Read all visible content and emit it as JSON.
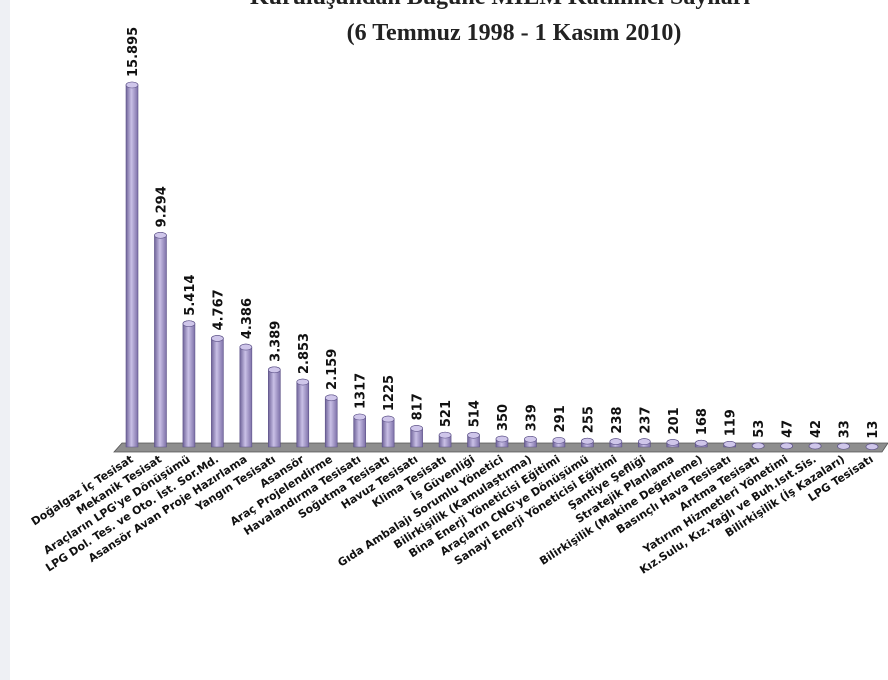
{
  "chart_data": {
    "type": "bar",
    "title": "Kuruluşundan Bugüne MİEM Katılımcı Sayıları",
    "subtitle": "(6 Temmuz 1998 - 1 Kasım 2010)",
    "color": "#9d90c6",
    "categories": [
      "Doğalgaz İç Tesisat",
      "Mekanik Tesisat",
      "Araçların LPG'ye Dönüşümü",
      "LPG Dol. Tes. ve Oto. İst. Sor.Md.",
      "Asansör Avan Proje Hazırlama",
      "Yangın Tesisatı",
      "Asansör",
      "Araç Projelendirme",
      "Havalandırma Tesisatı",
      "Soğutma Tesisatı",
      "Havuz Tesisatı",
      "Klima Tesisatı",
      "İş Güvenliği",
      "Gıda Ambalajı Sorumlu Yönetici",
      "Bilirkişilik (Kamulaştırma)",
      "Bina Enerji Yöneticisi Eğitimi",
      "Araçların CNG'ye Dönüşümü",
      "Sanayi Enerji Yöneticisi Eğitimi",
      "Şantiye Şefliği",
      "Stratejik Planlama",
      "Bilirkişilik (Makine Değerleme)",
      "Basınçlı Hava Tesisatı",
      "Arıtma Tesisatı",
      "Yatırım Hizmetleri Yönetimi",
      "Kız.Sulu, Kız.Yağlı ve Buh.Isıt.Sis.",
      "Bilirkişilik (İş Kazaları)",
      "LPG Tesisatı"
    ],
    "values": [
      15895,
      9294,
      5414,
      4767,
      4386,
      3389,
      2853,
      2159,
      1317,
      1225,
      817,
      521,
      514,
      350,
      339,
      291,
      255,
      238,
      237,
      201,
      168,
      119,
      53,
      47,
      42,
      33,
      13
    ],
    "value_labels": [
      "15.895",
      "9.294",
      "5.414",
      "4.767",
      "4.386",
      "3.389",
      "2.853",
      "2.159",
      "1317",
      "1225",
      "817",
      "521",
      "514",
      "350",
      "339",
      "291",
      "255",
      "238",
      "237",
      "201",
      "168",
      "119",
      "53",
      "47",
      "42",
      "33",
      "13"
    ]
  }
}
